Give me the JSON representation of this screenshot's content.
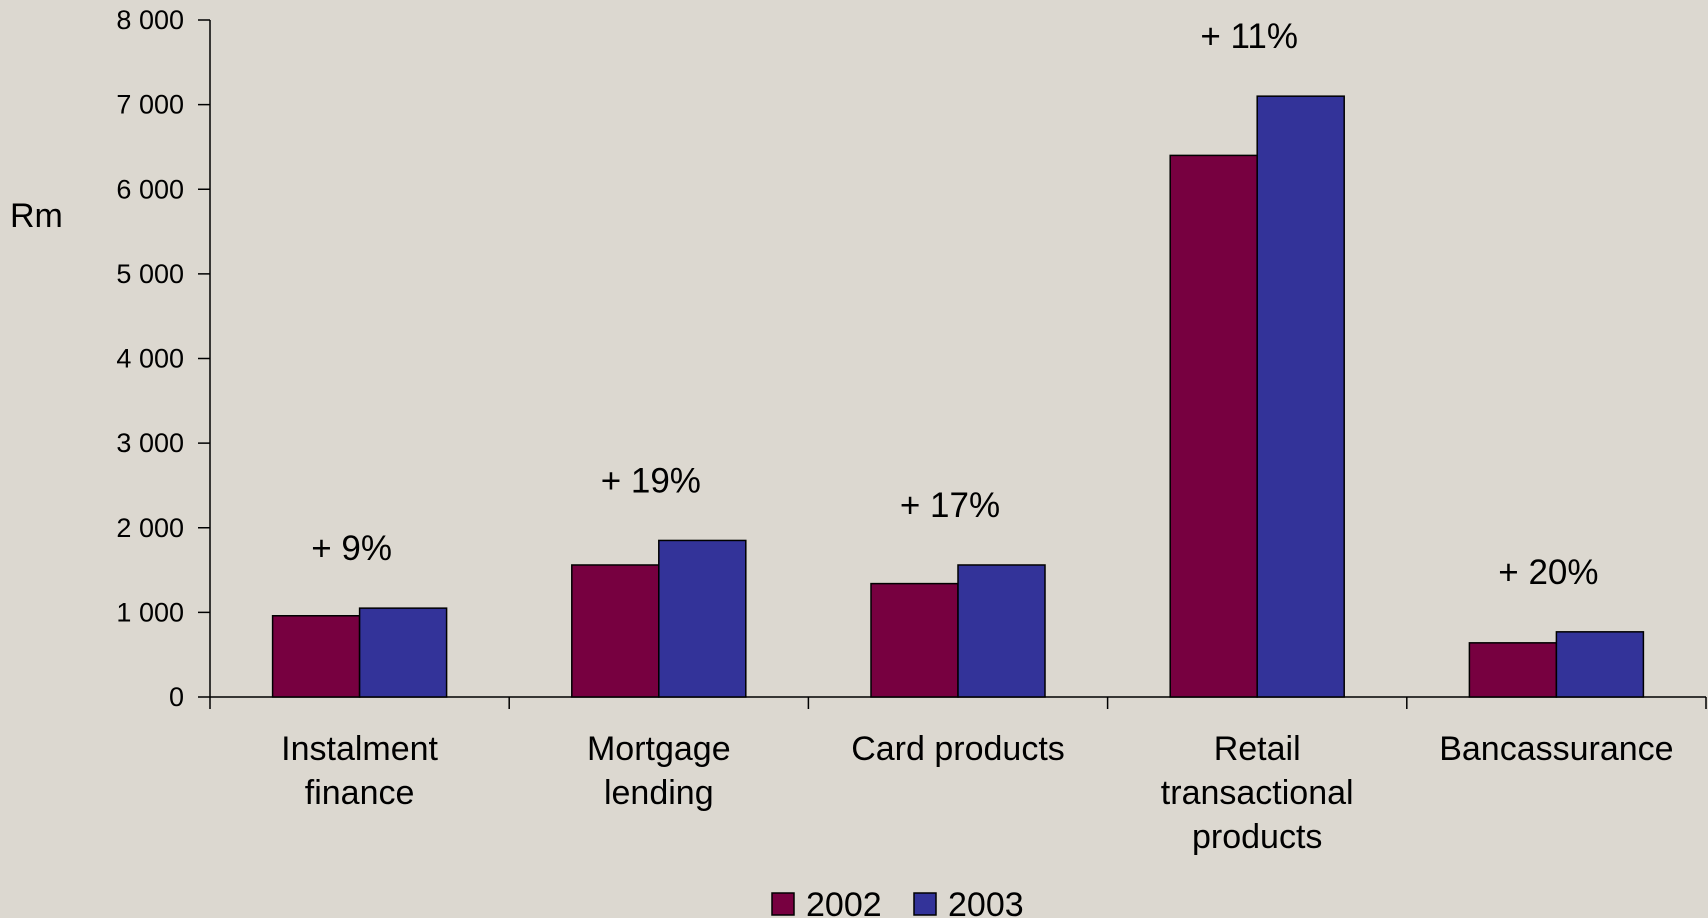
{
  "chart_data": {
    "type": "bar",
    "ylabel": "Rm",
    "ylim": [
      0,
      8000
    ],
    "yticks": [
      0,
      1000,
      2000,
      3000,
      4000,
      5000,
      6000,
      7000,
      8000
    ],
    "ytick_labels": [
      "0",
      "1 000",
      "2 000",
      "3 000",
      "4 000",
      "5 000",
      "6 000",
      "7 000",
      "8 000"
    ],
    "categories": [
      [
        "Instalment",
        "finance"
      ],
      [
        "Mortgage",
        "lending"
      ],
      [
        "Card products"
      ],
      [
        "Retail",
        "transactional",
        "products"
      ],
      [
        "Bancassurance"
      ]
    ],
    "series": [
      {
        "name": "2002",
        "color": "#770040",
        "values": [
          960,
          1560,
          1340,
          6400,
          640
        ]
      },
      {
        "name": "2003",
        "color": "#333399",
        "values": [
          1050,
          1850,
          1560,
          7100,
          770
        ]
      }
    ],
    "annotations": [
      "+ 9%",
      "+ 19%",
      "+ 17%",
      "+ 11%",
      "+ 20%"
    ],
    "legend_position": "bottom",
    "grid": false
  }
}
